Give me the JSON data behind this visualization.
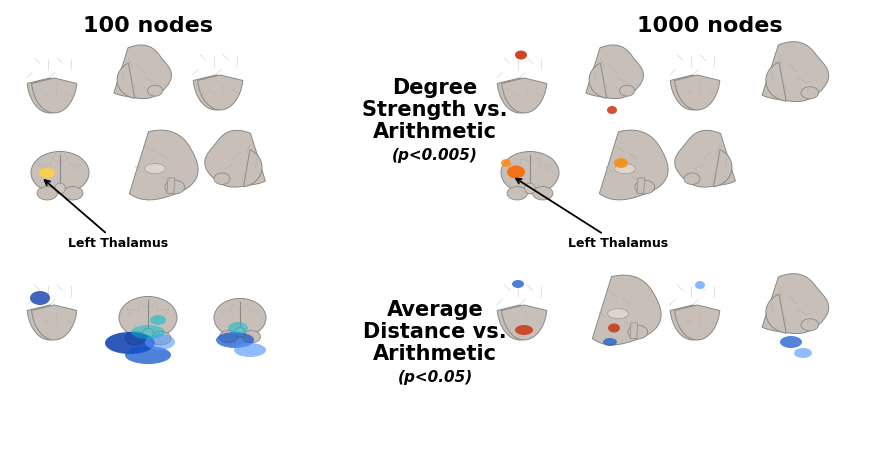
{
  "title_left": "100 nodes",
  "title_right": "1000 nodes",
  "label_top_line1": "Degree",
  "label_top_line2": "Strength vs.",
  "label_top_line3": "Arithmetic",
  "label_top_p": "(p<0.005)",
  "label_bottom_line1": "Average",
  "label_bottom_line2": "Distance vs.",
  "label_bottom_line3": "Arithmetic",
  "label_bottom_p": "(p<0.05)",
  "annotation_left_top": "Left Thalamus",
  "annotation_right_top": "Left Thalamus",
  "bg_color": "#ffffff",
  "text_color": "#000000",
  "title_fontsize": 16,
  "label_fontsize": 15,
  "p_fontsize": 11,
  "annot_fontsize": 9,
  "brain_gray": "#c8c0b8",
  "brain_edge": "#888888",
  "highlight_yellow": "#FFD040",
  "highlight_red_dark": "#CC2200",
  "highlight_orange": "#FF6600",
  "highlight_orange2": "#FF8800",
  "highlight_blue_dark": "#0033AA",
  "highlight_blue_mid": "#1155CC",
  "highlight_blue_light": "#5599FF",
  "highlight_cyan": "#00BBCC"
}
